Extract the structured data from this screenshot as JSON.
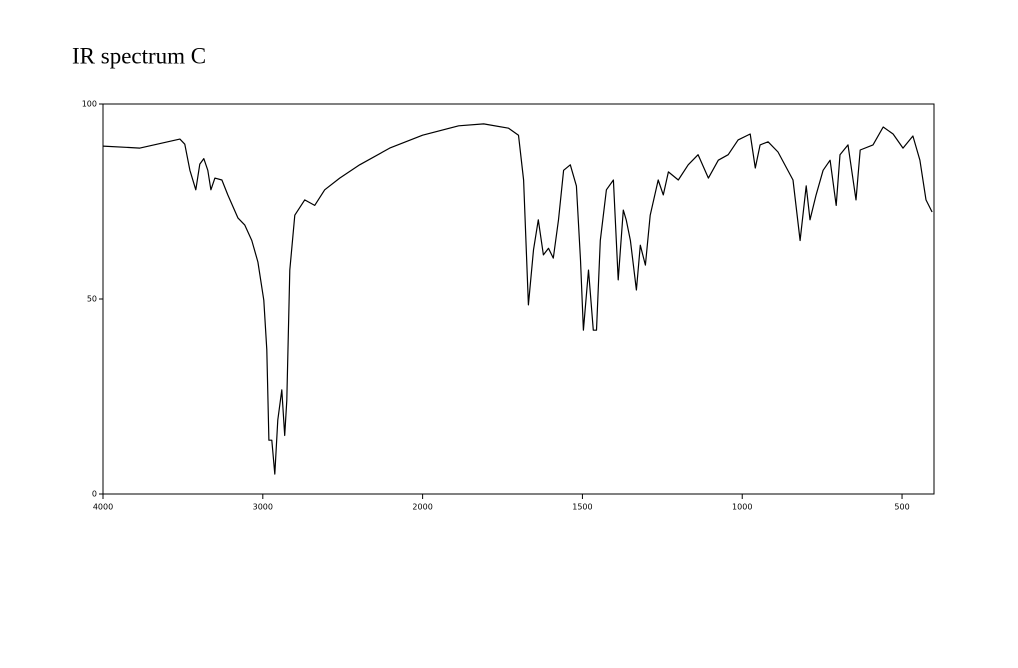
{
  "chart_data": {
    "type": "line",
    "title": "IR spectrum C",
    "x": [
      4000,
      3769,
      3519,
      3488,
      3456,
      3419,
      3394,
      3369,
      3344,
      3325,
      3300,
      3256,
      3219,
      3156,
      3113,
      3069,
      3031,
      2994,
      2975,
      2962,
      2944,
      2925,
      2906,
      2881,
      2863,
      2850,
      2831,
      2800,
      2738,
      2675,
      2613,
      2519,
      2394,
      2206,
      2000,
      1887,
      1809,
      1731,
      1700,
      1684,
      1669,
      1653,
      1638,
      1622,
      1606,
      1591,
      1575,
      1559,
      1538,
      1519,
      1506,
      1497,
      1481,
      1466,
      1456,
      1444,
      1425,
      1403,
      1388,
      1372,
      1363,
      1350,
      1331,
      1319,
      1303,
      1288,
      1263,
      1247,
      1231,
      1200,
      1169,
      1138,
      1106,
      1075,
      1044,
      1013,
      975,
      959,
      944,
      919,
      888,
      841,
      819,
      800,
      788,
      769,
      747,
      725,
      706,
      694,
      669,
      644,
      631,
      591,
      559,
      528,
      497,
      466,
      444,
      425,
      406
    ],
    "values": [
      89.2,
      88.7,
      91,
      89.7,
      83,
      78,
      84.6,
      86,
      83,
      78,
      81,
      80.5,
      76.7,
      70.8,
      69,
      65,
      59.5,
      49.7,
      37,
      13.8,
      13.8,
      5.1,
      19,
      26.7,
      15,
      24,
      57.4,
      71.5,
      75.4,
      74,
      78,
      81,
      84.4,
      88.7,
      92,
      94.4,
      94.9,
      93.8,
      92,
      80.5,
      48.5,
      62.6,
      70.3,
      61.3,
      63,
      60.5,
      70.3,
      83,
      84.4,
      79,
      60,
      42,
      57.4,
      42,
      42,
      65,
      78,
      80.5,
      54.9,
      72.8,
      70.3,
      65,
      52.3,
      63.8,
      58.7,
      71.5,
      80.5,
      76.7,
      82.6,
      80.5,
      84.4,
      87,
      81,
      85.6,
      87,
      90.8,
      92.3,
      83.6,
      89.5,
      90.3,
      87.7,
      80.5,
      65,
      79,
      70.3,
      76.7,
      83,
      85.6,
      74,
      87,
      89.5,
      75.4,
      88.2,
      89.5,
      94.1,
      92.3,
      88.7,
      91.8,
      85.6,
      75.4,
      72.3
    ],
    "color": "#000000",
    "xlim": [
      4000,
      400
    ],
    "x_scale_change": 2000,
    "xticks": [
      4000,
      3000,
      2000,
      1500,
      1000,
      500
    ],
    "ylim": [
      0,
      100
    ],
    "yticks": [
      0,
      50,
      100
    ]
  }
}
